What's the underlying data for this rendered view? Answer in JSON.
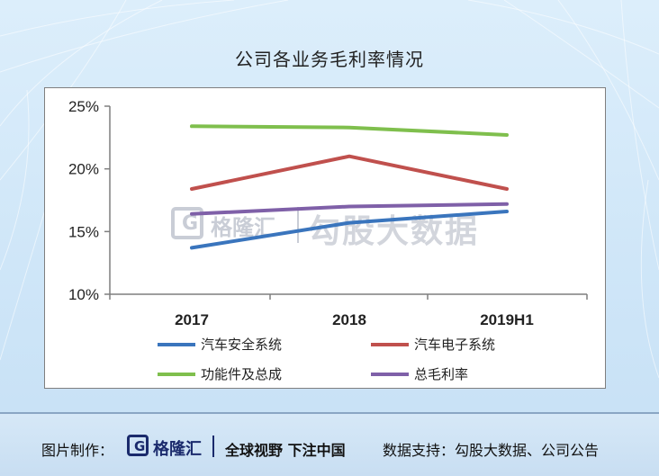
{
  "chart_data": {
    "type": "line",
    "title": "公司各业务毛利率情况",
    "categories": [
      "2017",
      "2018",
      "2019H1"
    ],
    "y_ticks": [
      "10%",
      "15%",
      "20%",
      "25%"
    ],
    "ylim": [
      10,
      25
    ],
    "grid": false,
    "legend_position": "bottom",
    "series": [
      {
        "name": "汽车安全系统",
        "color": "#3a75bd",
        "values": [
          13.7,
          15.7,
          16.6
        ]
      },
      {
        "name": "汽车电子系统",
        "color": "#c0504d",
        "values": [
          18.4,
          21.0,
          18.4
        ]
      },
      {
        "name": "功能件及总成",
        "color": "#7fbf4d",
        "values": [
          23.4,
          23.3,
          22.7
        ]
      },
      {
        "name": "总毛利率",
        "color": "#7f60a8",
        "values": [
          16.4,
          17.0,
          17.2
        ]
      }
    ]
  },
  "watermark": {
    "logo_letter": "G",
    "name": "格隆汇",
    "brand": "勾股大数据"
  },
  "footer": {
    "made_by": "图片制作：",
    "logo_letter": "G",
    "logo_name": "格隆汇",
    "slogan": "全球视野 下注中国",
    "source": "数据支持：勾股大数据、公司公告"
  }
}
